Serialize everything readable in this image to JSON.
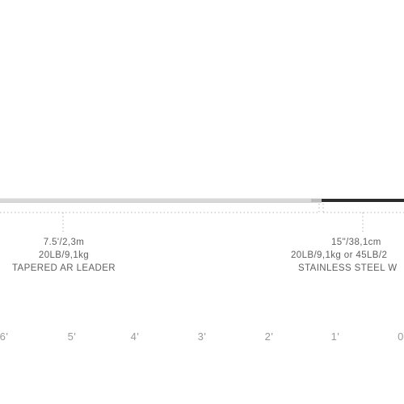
{
  "leader": {
    "length": "7.5'/2,3m",
    "strength": "20LB/9,1kg",
    "type": "TAPERED AR LEADER"
  },
  "wire": {
    "length": "15\"/38,1cm",
    "strength": "20LB/9,1kg or 45LB/2",
    "type": "STAINLESS STEEL W"
  },
  "scale": {
    "ticks": [
      "6'",
      "5'",
      "4'",
      "3'",
      "2'",
      "1'",
      "0"
    ]
  },
  "colors": {
    "leader_line": "#d8d8d8",
    "wire_line": "#2a2a2a",
    "dotted_guides": "#b5b5b5",
    "label_text": "#5f5f5f",
    "tick_text": "#9a9a9a"
  }
}
